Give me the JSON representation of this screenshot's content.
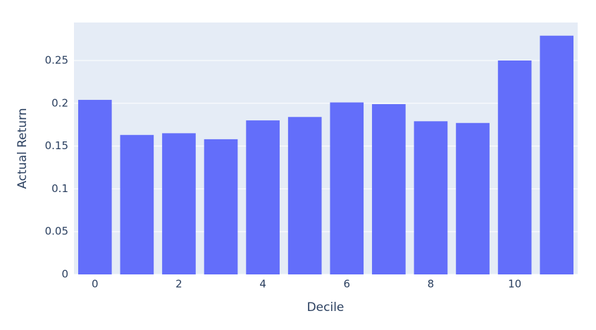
{
  "chart_data": {
    "type": "bar",
    "x": [
      0,
      1,
      2,
      3,
      4,
      5,
      6,
      7,
      8,
      9,
      10,
      11
    ],
    "values": [
      0.204,
      0.163,
      0.165,
      0.158,
      0.18,
      0.184,
      0.201,
      0.199,
      0.179,
      0.177,
      0.25,
      0.279
    ],
    "color": "#636efa",
    "x_label": "Decile",
    "y_label": "Actual Return",
    "xlim": [
      -0.5,
      11.5
    ],
    "xticks": [
      0,
      2,
      4,
      6,
      8,
      10
    ],
    "ylim": [
      0,
      0.2944
    ],
    "yticks": [
      0,
      0.05,
      0.1,
      0.15,
      0.2,
      0.25
    ],
    "grid": true
  }
}
